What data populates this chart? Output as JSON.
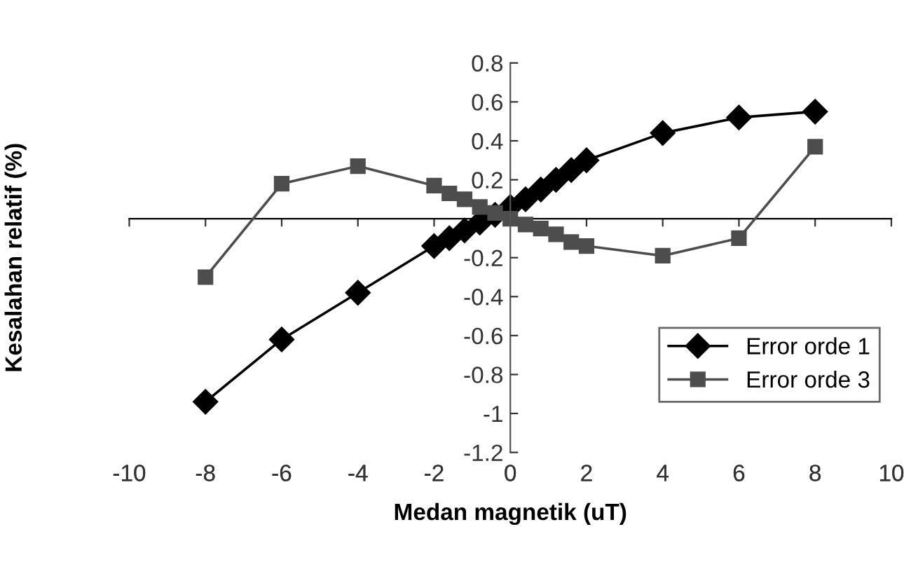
{
  "chart_data": {
    "type": "line",
    "xlabel": "Medan magnetik (uT)",
    "ylabel": "Kesalahan relatif (%)",
    "xlim": [
      -10,
      10
    ],
    "xticks": [
      -10,
      -8,
      -6,
      -4,
      -2,
      0,
      2,
      4,
      6,
      8,
      10
    ],
    "ylim": [
      -1.2,
      0.8
    ],
    "yticks": [
      -1.2,
      -1,
      -0.8,
      -0.6,
      -0.4,
      -0.2,
      0.2,
      0.4,
      0.6,
      0.8
    ],
    "grid": false,
    "legend": "bottom right",
    "line_style": "solid",
    "series": [
      {
        "name": "Error orde 1",
        "color": "#000000",
        "marker": "diamond",
        "x": [
          -8,
          -6,
          -4,
          -2,
          -1.6,
          -1.2,
          -0.8,
          -0.4,
          0,
          0.4,
          0.8,
          1.2,
          1.6,
          2,
          4,
          6,
          8
        ],
        "values": [
          -0.94,
          -0.62,
          -0.38,
          -0.14,
          -0.1,
          -0.06,
          -0.02,
          0.02,
          0.06,
          0.1,
          0.15,
          0.2,
          0.25,
          0.3,
          0.44,
          0.52,
          0.55
        ]
      },
      {
        "name": "Error orde 3",
        "color": "#4d4d4d",
        "marker": "square",
        "x": [
          -8,
          -6,
          -4,
          -2,
          -1.6,
          -1.2,
          -0.8,
          -0.4,
          0,
          0.4,
          0.8,
          1.2,
          1.6,
          2,
          4,
          6,
          8
        ],
        "values": [
          -0.3,
          0.18,
          0.27,
          0.17,
          0.13,
          0.1,
          0.06,
          0.03,
          0,
          -0.03,
          -0.05,
          -0.08,
          -0.12,
          -0.14,
          -0.19,
          -0.1,
          0.37
        ]
      }
    ]
  }
}
